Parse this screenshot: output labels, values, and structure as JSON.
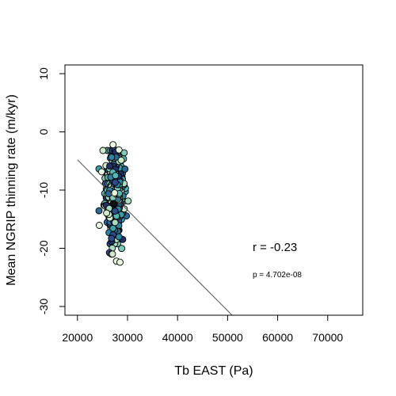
{
  "chart_data": {
    "type": "scatter",
    "title": "",
    "xlabel": "Tb EAST (Pa)",
    "ylabel": "Mean NGRIP thinning rate (m/kyr)",
    "xlim": [
      17500,
      77000
    ],
    "ylim": [
      -31.5,
      11.5
    ],
    "xticks": [
      20000,
      30000,
      40000,
      50000,
      60000,
      70000
    ],
    "xtick_labels": [
      "20000",
      "30000",
      "40000",
      "50000",
      "60000",
      "70000"
    ],
    "yticks": [
      -30,
      -20,
      -10,
      0,
      10
    ],
    "ytick_labels": [
      "-30",
      "-20",
      "-10",
      "0",
      "10"
    ],
    "grid": false,
    "fit_line": {
      "x": [
        20000,
        50900
      ],
      "y": [
        -4.8,
        -31.5
      ],
      "color": "#555555"
    },
    "annotations": [
      {
        "text": "r = -0.23",
        "x": 55000,
        "y": -20.5,
        "kind": "r"
      },
      {
        "text": "p = 4.702e-08",
        "x": 55000,
        "y": -25,
        "kind": "p"
      }
    ],
    "point_cloud": {
      "x_center": 27300,
      "x_spread": 1150,
      "y_center": -10.5,
      "y_spread": 3.6,
      "y_min": -22.5,
      "y_max": -2.2,
      "count": 520,
      "palette": [
        "#e8f6e0",
        "#cdeccb",
        "#a8dcbf",
        "#7fcab8",
        "#57b7b2",
        "#3a9fab",
        "#2f84a2",
        "#2b6a98",
        "#2f4c8a",
        "#24306a"
      ],
      "highlight_points": [
        {
          "x": 27200,
          "y": -12.3,
          "color": "#111111"
        },
        {
          "x": 27500,
          "y": -13.6,
          "color": "#2f4c8a"
        },
        {
          "x": 26800,
          "y": -18.3,
          "color": "#2f4c8a"
        },
        {
          "x": 27800,
          "y": -22.2,
          "color": "#e8f6e0"
        },
        {
          "x": 28500,
          "y": -22.4,
          "color": "#e8f6e0"
        },
        {
          "x": 27000,
          "y": -21.0,
          "color": "#cdeccb"
        },
        {
          "x": 27100,
          "y": -2.2,
          "color": "#e8f6e0"
        },
        {
          "x": 28300,
          "y": -3.1,
          "color": "#e8f6e0"
        }
      ]
    }
  }
}
